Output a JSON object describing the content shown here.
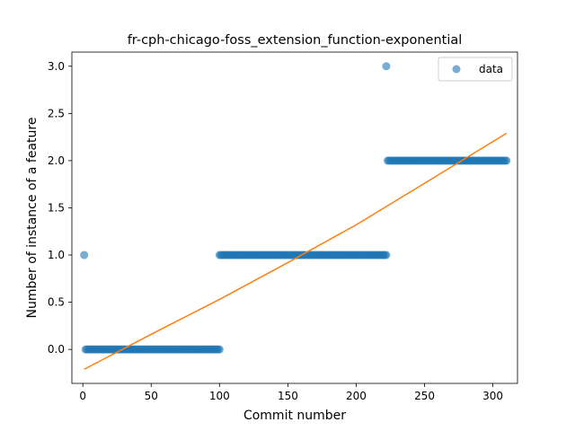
{
  "chart_data": {
    "type": "scatter",
    "title": "fr-cph-chicago-foss_extension_function-exponential",
    "xlabel": "Commit number",
    "ylabel": "Number of instance of a feature",
    "xlim": [
      -8,
      318
    ],
    "ylim": [
      -0.36,
      3.15
    ],
    "x_ticks": [
      0,
      50,
      100,
      150,
      200,
      250,
      300
    ],
    "x_tick_labels": [
      "0",
      "50",
      "100",
      "150",
      "200",
      "250",
      "300"
    ],
    "y_ticks": [
      0.0,
      0.5,
      1.0,
      1.5,
      2.0,
      2.5,
      3.0
    ],
    "y_tick_labels": [
      "0.0",
      "0.5",
      "1.0",
      "1.5",
      "2.0",
      "2.5",
      "3.0"
    ],
    "grid": false,
    "legend": {
      "position": "top-right",
      "entries": [
        "data"
      ]
    },
    "colors": {
      "data": "#1f77b4",
      "fit": "#ff7f0e"
    },
    "series": [
      {
        "name": "data",
        "kind": "scatter",
        "segments": [
          {
            "x_start": 1,
            "x_end": 1,
            "y": 1
          },
          {
            "x_start": 2,
            "x_end": 100,
            "y": 0
          },
          {
            "x_start": 100,
            "x_end": 222,
            "y": 1
          },
          {
            "x_start": 222,
            "x_end": 222,
            "y": 3
          },
          {
            "x_start": 223,
            "x_end": 310,
            "y": 2
          }
        ]
      },
      {
        "kind": "line",
        "x": [
          1,
          50,
          100,
          150,
          200,
          250,
          310
        ],
        "y": [
          -0.21,
          0.16,
          0.53,
          0.92,
          1.32,
          1.76,
          2.29
        ]
      }
    ]
  }
}
